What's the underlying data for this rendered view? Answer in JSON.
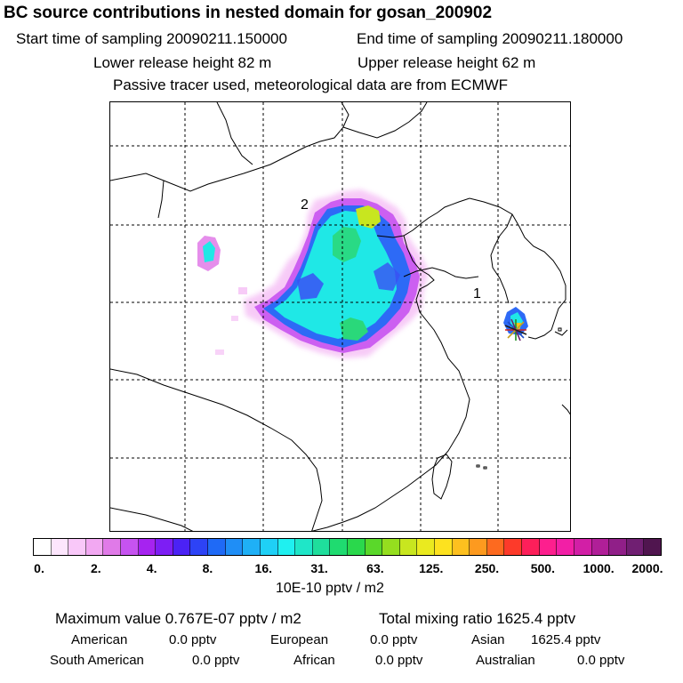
{
  "title": "BC  source contributions in nested domain for gosan_200902",
  "header": {
    "start_time": "Start time of sampling 20090211.150000",
    "end_time": "End time of sampling 20090211.180000",
    "lower_height": "Lower release height   82 m",
    "upper_height": "Upper release height   62 m",
    "tracer_note": "Passive tracer used, meteorological data are from ECMWF"
  },
  "map": {
    "labels": {
      "label_1": "1",
      "label_2": "2"
    },
    "marker": "star-marker"
  },
  "colorbar": {
    "unit": "10E-10 pptv / m2",
    "ticks": [
      "0.",
      "2.",
      "4.",
      "8.",
      "16.",
      "31.",
      "63.",
      "125.",
      "250.",
      "500.",
      "1000.",
      "2000."
    ],
    "colors": [
      "#ffffff",
      "#fde6fd",
      "#f9c8f9",
      "#f2a8f2",
      "#e07ae8",
      "#c653f0",
      "#a623f0",
      "#7d1ef4",
      "#4b22f5",
      "#2d43f6",
      "#1f6af6",
      "#1f8ef6",
      "#1fb0f6",
      "#1fd0f6",
      "#1ff0f0",
      "#1fe6c8",
      "#1fde9c",
      "#1fdb70",
      "#2ad84c",
      "#5ad82a",
      "#95de1f",
      "#c8e61f",
      "#eaea1f",
      "#fde21f",
      "#fdc01f",
      "#fd9a1f",
      "#fd6a1f",
      "#fd3a2a",
      "#fd1f5a",
      "#fd1f8e",
      "#f21fa6",
      "#d21fa6",
      "#b01f98",
      "#901f88",
      "#701f72",
      "#50154f"
    ]
  },
  "stats": {
    "max_value": "Maximum value  0.767E-07 pptv / m2",
    "total_mixing": "Total mixing ratio     1625.4 pptv",
    "american_label": "American",
    "american_value": "0.0 pptv",
    "european_label": "European",
    "european_value": "0.0 pptv",
    "asian_label": "Asian",
    "asian_value": "1625.4 pptv",
    "south_american_label": "South American",
    "south_american_value": "0.0 pptv",
    "african_label": "African",
    "african_value": "0.0 pptv",
    "australian_label": "Australian",
    "australian_value": "0.0 pptv"
  }
}
